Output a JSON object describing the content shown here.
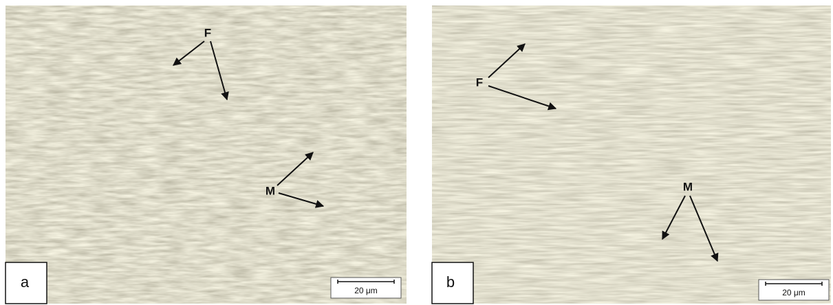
{
  "panels": [
    {
      "label": "a",
      "annotations": [
        {
          "text": "F"
        },
        {
          "text": "M"
        }
      ],
      "scale_bar": "20 μm"
    },
    {
      "label": "b",
      "annotations": [
        {
          "text": "F"
        },
        {
          "text": "M"
        }
      ],
      "scale_bar": "20 μm"
    }
  ]
}
